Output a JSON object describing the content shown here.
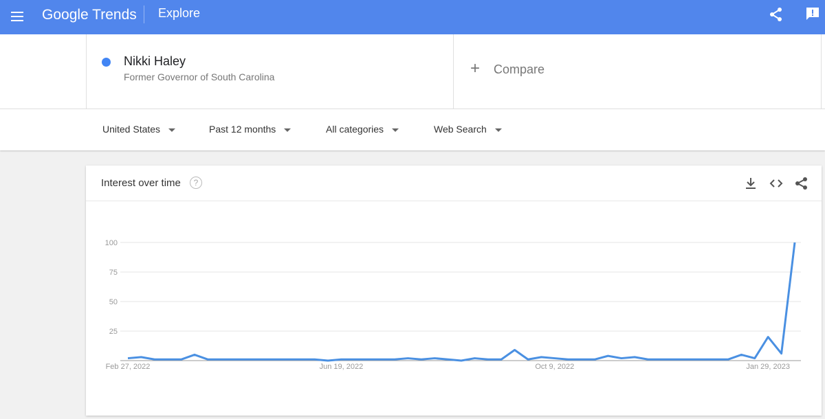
{
  "header": {
    "logo": "Google Trends",
    "page": "Explore"
  },
  "search": {
    "term": "Nikki Haley",
    "description": "Former Governor of South Carolina",
    "compare": "Compare"
  },
  "filters": [
    "United States",
    "Past 12 months",
    "All categories",
    "Web Search"
  ],
  "chart_data": {
    "type": "line",
    "title": "Interest over time",
    "categories": [
      "Feb 27, 2022",
      null,
      null,
      null,
      null,
      null,
      null,
      null,
      null,
      null,
      null,
      null,
      null,
      null,
      null,
      null,
      "Jun 19, 2022",
      null,
      null,
      null,
      null,
      null,
      null,
      null,
      null,
      null,
      null,
      null,
      null,
      null,
      null,
      null,
      "Oct 9, 2022",
      null,
      null,
      null,
      null,
      null,
      null,
      null,
      null,
      null,
      null,
      null,
      null,
      null,
      null,
      null,
      "Jan 29, 2023",
      null,
      null
    ],
    "values": [
      2,
      3,
      1,
      1,
      1,
      5,
      1,
      1,
      1,
      1,
      1,
      1,
      1,
      1,
      1,
      0,
      1,
      1,
      1,
      1,
      1,
      2,
      1,
      2,
      1,
      0,
      2,
      1,
      1,
      9,
      1,
      3,
      2,
      1,
      1,
      1,
      4,
      2,
      3,
      1,
      1,
      1,
      1,
      1,
      1,
      1,
      5,
      2,
      20,
      6,
      100
    ],
    "color": "#4a90e2",
    "ylim": [
      0,
      100
    ],
    "yticks": [
      25,
      50,
      75,
      100
    ],
    "grid": true
  }
}
